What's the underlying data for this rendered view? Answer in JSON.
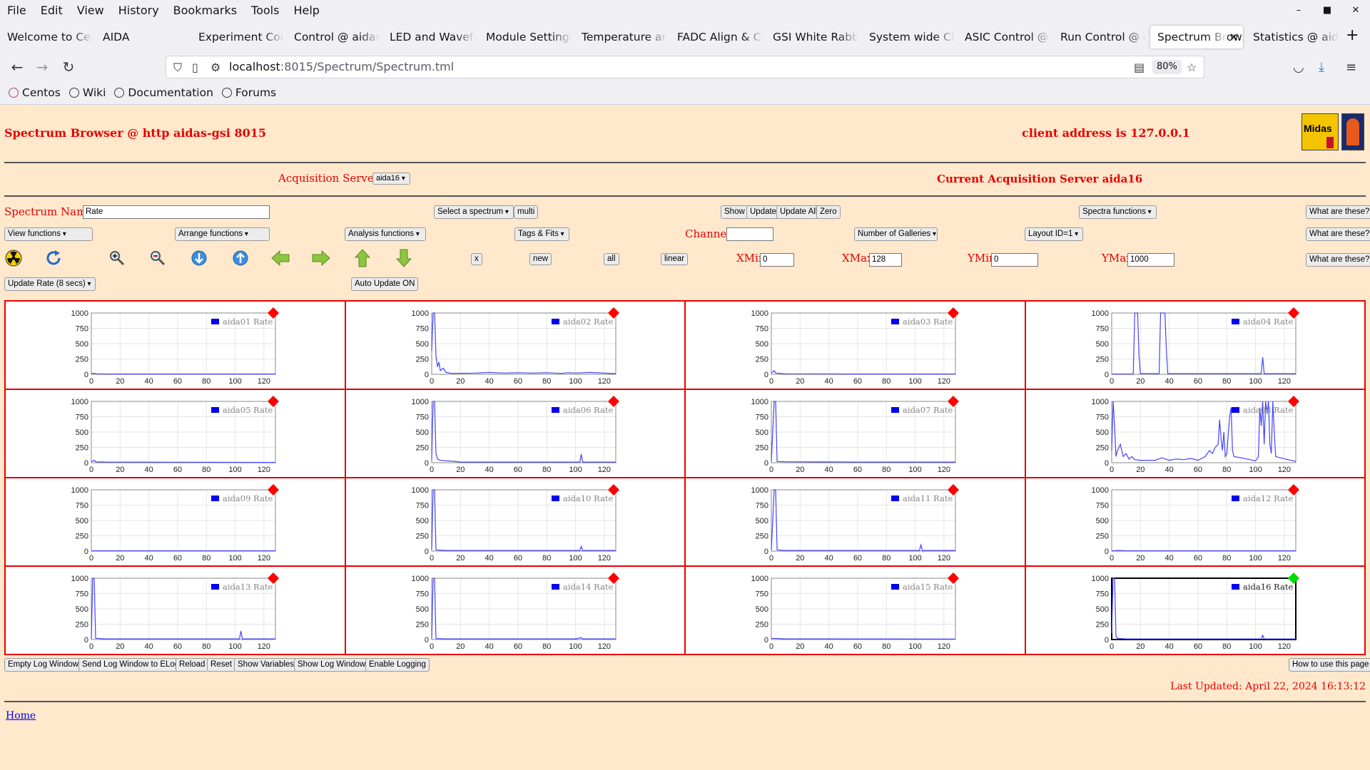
{
  "browser": {
    "menu": [
      "File",
      "Edit",
      "View",
      "History",
      "Bookmarks",
      "Tools",
      "Help"
    ],
    "window_controls": [
      "–",
      "■",
      "✕"
    ],
    "tabs": [
      {
        "label": "Welcome to Cent",
        "active": false
      },
      {
        "label": "AIDA",
        "active": false
      },
      {
        "label": "Experiment Contr",
        "active": false
      },
      {
        "label": "Control @ aidas-",
        "active": false
      },
      {
        "label": "LED and Wavefor",
        "active": false
      },
      {
        "label": "Module Settings",
        "active": false
      },
      {
        "label": "Temperature and",
        "active": false
      },
      {
        "label": "FADC Align & Co",
        "active": false
      },
      {
        "label": "GSI White Rabbit",
        "active": false
      },
      {
        "label": "System wide Che",
        "active": false
      },
      {
        "label": "ASIC Control @ a",
        "active": false
      },
      {
        "label": "Run Control @ ai",
        "active": false
      },
      {
        "label": "Spectrum Brows",
        "active": true
      },
      {
        "label": "Statistics @ aidas",
        "active": false
      }
    ],
    "url_host": "localhost",
    "url_path": ":8015/Spectrum/Spectrum.tml",
    "zoom": "80%",
    "bookmarks": [
      "Centos",
      "Wiki",
      "Documentation",
      "Forums"
    ]
  },
  "header": {
    "title": "Spectrum Browser @ http aidas-gsi 8015",
    "client": "client address is 127.0.0.1",
    "logo_text": "Midas"
  },
  "servers": {
    "label": "Acquisition Servers",
    "selected": "aida16",
    "current": "Current Acquisition Server aida16"
  },
  "controls": {
    "spectrum_name_label": "Spectrum Name:",
    "spectrum_name_value": "Rate",
    "select_spectrum": "Select a spectrum",
    "multi": "multi",
    "show": "Show",
    "update": "Update",
    "update_all": "Update All",
    "zero": "Zero",
    "spectra_functions": "Spectra functions",
    "what": "What are these?",
    "view_functions": "View functions",
    "arrange_functions": "Arrange functions",
    "analysis_functions": "Analysis functions",
    "tags_fits": "Tags & Fits",
    "channel_label": "Channel:",
    "channel_value": "",
    "galleries": "Number of Galleries",
    "layout": "Layout ID=1",
    "x_btn": "x",
    "new_btn": "new",
    "all_btn": "all",
    "linear_btn": "linear",
    "xmin_label": "XMin",
    "xmin": "0",
    "xmax_label": "XMax",
    "xmax": "128",
    "ymin_label": "YMin",
    "ymin": "0",
    "ymax_label": "YMax",
    "ymax": "1000",
    "update_rate": "Update Rate (8 secs)",
    "auto_update": "Auto Update ON"
  },
  "footer": {
    "buttons": [
      "Empty Log Window",
      "Send Log Window to ELog",
      "Reload",
      "Reset",
      "Show Variables",
      "Show Log Window",
      "Enable Logging"
    ],
    "how_to": "How to use this page",
    "last_updated": "Last Updated: April 22, 2024 16:13:12",
    "home": "Home"
  },
  "chart_data": {
    "type": "line",
    "xlim": [
      0,
      128
    ],
    "ylim": [
      0,
      1000
    ],
    "x_ticks": [
      0,
      20,
      40,
      60,
      80,
      100,
      120
    ],
    "y_ticks": [
      0,
      250,
      500,
      750,
      1000
    ],
    "color": "#4444ff",
    "status_colors": {
      "red": "#ff0000",
      "green": "#00dd00"
    },
    "plots": [
      {
        "name": "aida01 Rate",
        "status": "red",
        "points": [
          [
            0,
            10
          ],
          [
            2,
            15
          ],
          [
            4,
            8
          ],
          [
            10,
            5
          ],
          [
            60,
            5
          ],
          [
            100,
            5
          ],
          [
            128,
            5
          ]
        ]
      },
      {
        "name": "aida02 Rate",
        "status": "red",
        "points": [
          [
            0,
            380
          ],
          [
            1,
            1000
          ],
          [
            2,
            1000
          ],
          [
            3,
            300
          ],
          [
            4,
            120
          ],
          [
            5,
            200
          ],
          [
            6,
            60
          ],
          [
            8,
            100
          ],
          [
            10,
            30
          ],
          [
            14,
            15
          ],
          [
            30,
            20
          ],
          [
            40,
            30
          ],
          [
            50,
            20
          ],
          [
            60,
            25
          ],
          [
            70,
            20
          ],
          [
            80,
            25
          ],
          [
            90,
            15
          ],
          [
            95,
            25
          ],
          [
            100,
            20
          ],
          [
            110,
            30
          ],
          [
            128,
            10
          ]
        ]
      },
      {
        "name": "aida03 Rate",
        "status": "red",
        "points": [
          [
            0,
            20
          ],
          [
            2,
            60
          ],
          [
            3,
            20
          ],
          [
            10,
            8
          ],
          [
            60,
            5
          ],
          [
            128,
            5
          ]
        ]
      },
      {
        "name": "aida04 Rate",
        "status": "red",
        "points": [
          [
            0,
            5
          ],
          [
            15,
            5
          ],
          [
            16,
            1000
          ],
          [
            17,
            1000
          ],
          [
            18,
            1000
          ],
          [
            19,
            300
          ],
          [
            20,
            10
          ],
          [
            33,
            10
          ],
          [
            34,
            1000
          ],
          [
            36,
            1000
          ],
          [
            37,
            1000
          ],
          [
            38,
            400
          ],
          [
            39,
            10
          ],
          [
            100,
            10
          ],
          [
            104,
            10
          ],
          [
            105,
            280
          ],
          [
            106,
            10
          ],
          [
            128,
            10
          ]
        ]
      },
      {
        "name": "aida05 Rate",
        "status": "red",
        "points": [
          [
            0,
            20
          ],
          [
            2,
            40
          ],
          [
            3,
            15
          ],
          [
            10,
            10
          ],
          [
            128,
            5
          ]
        ]
      },
      {
        "name": "aida06 Rate",
        "status": "red",
        "points": [
          [
            0,
            50
          ],
          [
            1,
            1000
          ],
          [
            2,
            1000
          ],
          [
            3,
            150
          ],
          [
            4,
            60
          ],
          [
            6,
            40
          ],
          [
            10,
            30
          ],
          [
            14,
            25
          ],
          [
            20,
            10
          ],
          [
            100,
            10
          ],
          [
            103,
            10
          ],
          [
            104,
            140
          ],
          [
            105,
            10
          ],
          [
            128,
            10
          ]
        ]
      },
      {
        "name": "aida07 Rate",
        "status": "red",
        "points": [
          [
            0,
            20
          ],
          [
            2,
            1000
          ],
          [
            3,
            1000
          ],
          [
            4,
            20
          ],
          [
            10,
            15
          ],
          [
            60,
            10
          ],
          [
            128,
            10
          ]
        ]
      },
      {
        "name": "aida08 Rate",
        "status": "red",
        "points": [
          [
            0,
            200
          ],
          [
            1,
            1000
          ],
          [
            2,
            600
          ],
          [
            3,
            100
          ],
          [
            4,
            200
          ],
          [
            6,
            300
          ],
          [
            8,
            100
          ],
          [
            10,
            150
          ],
          [
            12,
            60
          ],
          [
            14,
            100
          ],
          [
            16,
            50
          ],
          [
            20,
            40
          ],
          [
            30,
            40
          ],
          [
            35,
            80
          ],
          [
            40,
            40
          ],
          [
            45,
            60
          ],
          [
            50,
            50
          ],
          [
            55,
            70
          ],
          [
            60,
            40
          ],
          [
            65,
            100
          ],
          [
            68,
            200
          ],
          [
            70,
            150
          ],
          [
            72,
            250
          ],
          [
            74,
            300
          ],
          [
            75,
            700
          ],
          [
            76,
            400
          ],
          [
            77,
            200
          ],
          [
            78,
            500
          ],
          [
            79,
            100
          ],
          [
            80,
            150
          ],
          [
            82,
            750
          ],
          [
            83,
            900
          ],
          [
            84,
            200
          ],
          [
            85,
            100
          ],
          [
            90,
            80
          ],
          [
            100,
            30
          ],
          [
            102,
            100
          ],
          [
            103,
            900
          ],
          [
            104,
            600
          ],
          [
            105,
            1000
          ],
          [
            106,
            300
          ],
          [
            107,
            1000
          ],
          [
            108,
            800
          ],
          [
            109,
            1000
          ],
          [
            110,
            300
          ],
          [
            111,
            150
          ],
          [
            112,
            1000
          ],
          [
            113,
            500
          ],
          [
            114,
            100
          ],
          [
            128,
            20
          ]
        ]
      },
      {
        "name": "aida09 Rate",
        "status": "red",
        "points": [
          [
            0,
            5
          ],
          [
            128,
            5
          ]
        ]
      },
      {
        "name": "aida10 Rate",
        "status": "red",
        "points": [
          [
            0,
            20
          ],
          [
            1,
            1000
          ],
          [
            2,
            1000
          ],
          [
            3,
            20
          ],
          [
            10,
            10
          ],
          [
            100,
            10
          ],
          [
            103,
            10
          ],
          [
            104,
            80
          ],
          [
            105,
            10
          ],
          [
            128,
            10
          ]
        ]
      },
      {
        "name": "aida11 Rate",
        "status": "red",
        "points": [
          [
            0,
            20
          ],
          [
            2,
            1000
          ],
          [
            3,
            1000
          ],
          [
            4,
            20
          ],
          [
            10,
            10
          ],
          [
            100,
            10
          ],
          [
            103,
            10
          ],
          [
            104,
            100
          ],
          [
            105,
            10
          ],
          [
            128,
            10
          ]
        ]
      },
      {
        "name": "aida12 Rate",
        "status": "red",
        "points": [
          [
            0,
            5
          ],
          [
            5,
            10
          ],
          [
            10,
            5
          ],
          [
            128,
            5
          ]
        ]
      },
      {
        "name": "aida13 Rate",
        "status": "red",
        "points": [
          [
            0,
            10
          ],
          [
            1,
            1000
          ],
          [
            2,
            1000
          ],
          [
            3,
            20
          ],
          [
            10,
            10
          ],
          [
            100,
            10
          ],
          [
            103,
            10
          ],
          [
            104,
            140
          ],
          [
            105,
            10
          ],
          [
            128,
            10
          ]
        ]
      },
      {
        "name": "aida14 Rate",
        "status": "red",
        "points": [
          [
            0,
            10
          ],
          [
            1,
            1000
          ],
          [
            2,
            1000
          ],
          [
            3,
            15
          ],
          [
            10,
            10
          ],
          [
            100,
            10
          ],
          [
            104,
            30
          ],
          [
            105,
            10
          ],
          [
            128,
            10
          ]
        ]
      },
      {
        "name": "aida15 Rate",
        "status": "red",
        "points": [
          [
            0,
            15
          ],
          [
            2,
            20
          ],
          [
            10,
            10
          ],
          [
            128,
            8
          ]
        ]
      },
      {
        "name": "aida16 Rate",
        "status": "green",
        "points": [
          [
            0,
            100
          ],
          [
            1,
            1000
          ],
          [
            2,
            1000
          ],
          [
            3,
            60
          ],
          [
            4,
            20
          ],
          [
            10,
            10
          ],
          [
            100,
            10
          ],
          [
            104,
            10
          ],
          [
            105,
            70
          ],
          [
            106,
            10
          ],
          [
            128,
            10
          ]
        ]
      }
    ]
  }
}
